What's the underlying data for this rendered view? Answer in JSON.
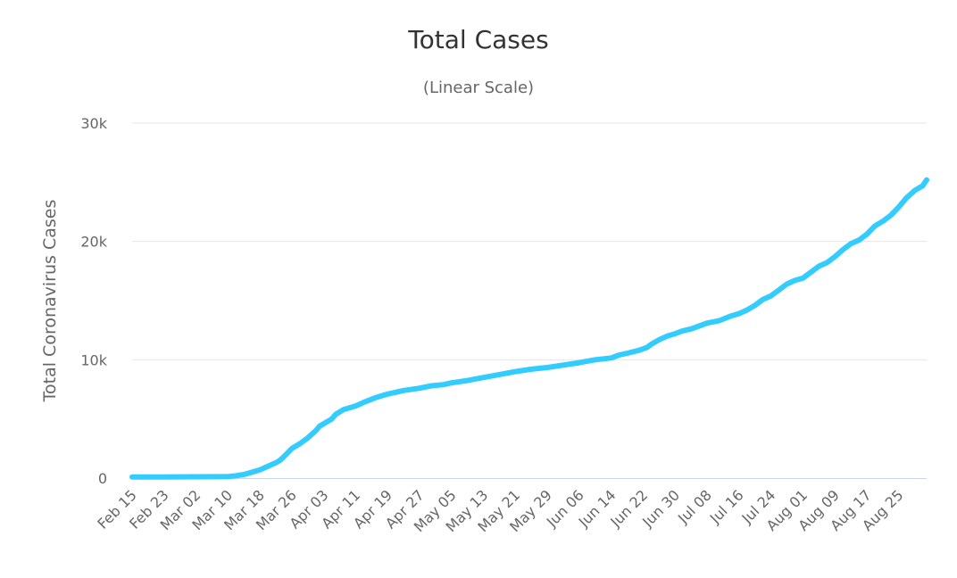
{
  "chart_data": {
    "type": "line",
    "title": "Total Cases",
    "subtitle": "(Linear Scale)",
    "ylabel": "Total Coronavirus Cases",
    "xlabel": "",
    "ylim": [
      0,
      30000
    ],
    "yticks": [
      {
        "value": 0,
        "label": "0"
      },
      {
        "value": 10000,
        "label": "10k"
      },
      {
        "value": 20000,
        "label": "20k"
      },
      {
        "value": 30000,
        "label": "30k"
      }
    ],
    "start_date": "Feb 15",
    "num_days": 200,
    "xticks": [
      {
        "day": 0,
        "label": "Feb 15"
      },
      {
        "day": 8,
        "label": "Feb 23"
      },
      {
        "day": 16,
        "label": "Mar 02"
      },
      {
        "day": 24,
        "label": "Mar 10"
      },
      {
        "day": 32,
        "label": "Mar 18"
      },
      {
        "day": 40,
        "label": "Mar 26"
      },
      {
        "day": 48,
        "label": "Apr 03"
      },
      {
        "day": 56,
        "label": "Apr 11"
      },
      {
        "day": 64,
        "label": "Apr 19"
      },
      {
        "day": 72,
        "label": "Apr 27"
      },
      {
        "day": 80,
        "label": "May 05"
      },
      {
        "day": 88,
        "label": "May 13"
      },
      {
        "day": 96,
        "label": "May 21"
      },
      {
        "day": 104,
        "label": "May 29"
      },
      {
        "day": 112,
        "label": "Jun 06"
      },
      {
        "day": 120,
        "label": "Jun 14"
      },
      {
        "day": 128,
        "label": "Jun 22"
      },
      {
        "day": 136,
        "label": "Jun 30"
      },
      {
        "day": 144,
        "label": "Jul 08"
      },
      {
        "day": 152,
        "label": "Jul 16"
      },
      {
        "day": 160,
        "label": "Jul 24"
      },
      {
        "day": 168,
        "label": "Aug 01"
      },
      {
        "day": 176,
        "label": "Aug 09"
      },
      {
        "day": 184,
        "label": "Aug 17"
      },
      {
        "day": 192,
        "label": "Aug 25"
      }
    ],
    "series": [
      {
        "name": "Cases",
        "color": "#33ccff",
        "points": [
          [
            0,
            100
          ],
          [
            8,
            100
          ],
          [
            16,
            110
          ],
          [
            22,
            120
          ],
          [
            24,
            130
          ],
          [
            26,
            200
          ],
          [
            28,
            300
          ],
          [
            30,
            500
          ],
          [
            32,
            700
          ],
          [
            34,
            1000
          ],
          [
            36,
            1300
          ],
          [
            37,
            1500
          ],
          [
            38,
            1800
          ],
          [
            40,
            2500
          ],
          [
            42,
            2900
          ],
          [
            44,
            3400
          ],
          [
            46,
            4000
          ],
          [
            47,
            4400
          ],
          [
            48,
            4600
          ],
          [
            50,
            5000
          ],
          [
            51,
            5400
          ],
          [
            53,
            5800
          ],
          [
            56,
            6100
          ],
          [
            58,
            6400
          ],
          [
            61,
            6800
          ],
          [
            64,
            7100
          ],
          [
            68,
            7400
          ],
          [
            72,
            7600
          ],
          [
            75,
            7800
          ],
          [
            78,
            7900
          ],
          [
            80,
            8050
          ],
          [
            84,
            8250
          ],
          [
            88,
            8500
          ],
          [
            92,
            8750
          ],
          [
            96,
            9000
          ],
          [
            100,
            9200
          ],
          [
            104,
            9350
          ],
          [
            108,
            9550
          ],
          [
            112,
            9750
          ],
          [
            116,
            10000
          ],
          [
            120,
            10150
          ],
          [
            122,
            10400
          ],
          [
            124,
            10550
          ],
          [
            127,
            10800
          ],
          [
            129,
            11050
          ],
          [
            130,
            11300
          ],
          [
            132,
            11700
          ],
          [
            134,
            12000
          ],
          [
            136,
            12200
          ],
          [
            138,
            12450
          ],
          [
            140,
            12600
          ],
          [
            142,
            12850
          ],
          [
            144,
            13100
          ],
          [
            147,
            13300
          ],
          [
            150,
            13700
          ],
          [
            152,
            13900
          ],
          [
            154,
            14200
          ],
          [
            156,
            14600
          ],
          [
            158,
            15100
          ],
          [
            160,
            15400
          ],
          [
            162,
            15900
          ],
          [
            164,
            16400
          ],
          [
            166,
            16700
          ],
          [
            168,
            16900
          ],
          [
            170,
            17400
          ],
          [
            172,
            17900
          ],
          [
            174,
            18200
          ],
          [
            176,
            18700
          ],
          [
            178,
            19300
          ],
          [
            180,
            19800
          ],
          [
            182,
            20100
          ],
          [
            184,
            20600
          ],
          [
            186,
            21300
          ],
          [
            188,
            21700
          ],
          [
            190,
            22200
          ],
          [
            192,
            22900
          ],
          [
            194,
            23700
          ],
          [
            196,
            24300
          ],
          [
            198,
            24700
          ],
          [
            199,
            25200
          ]
        ]
      }
    ]
  }
}
